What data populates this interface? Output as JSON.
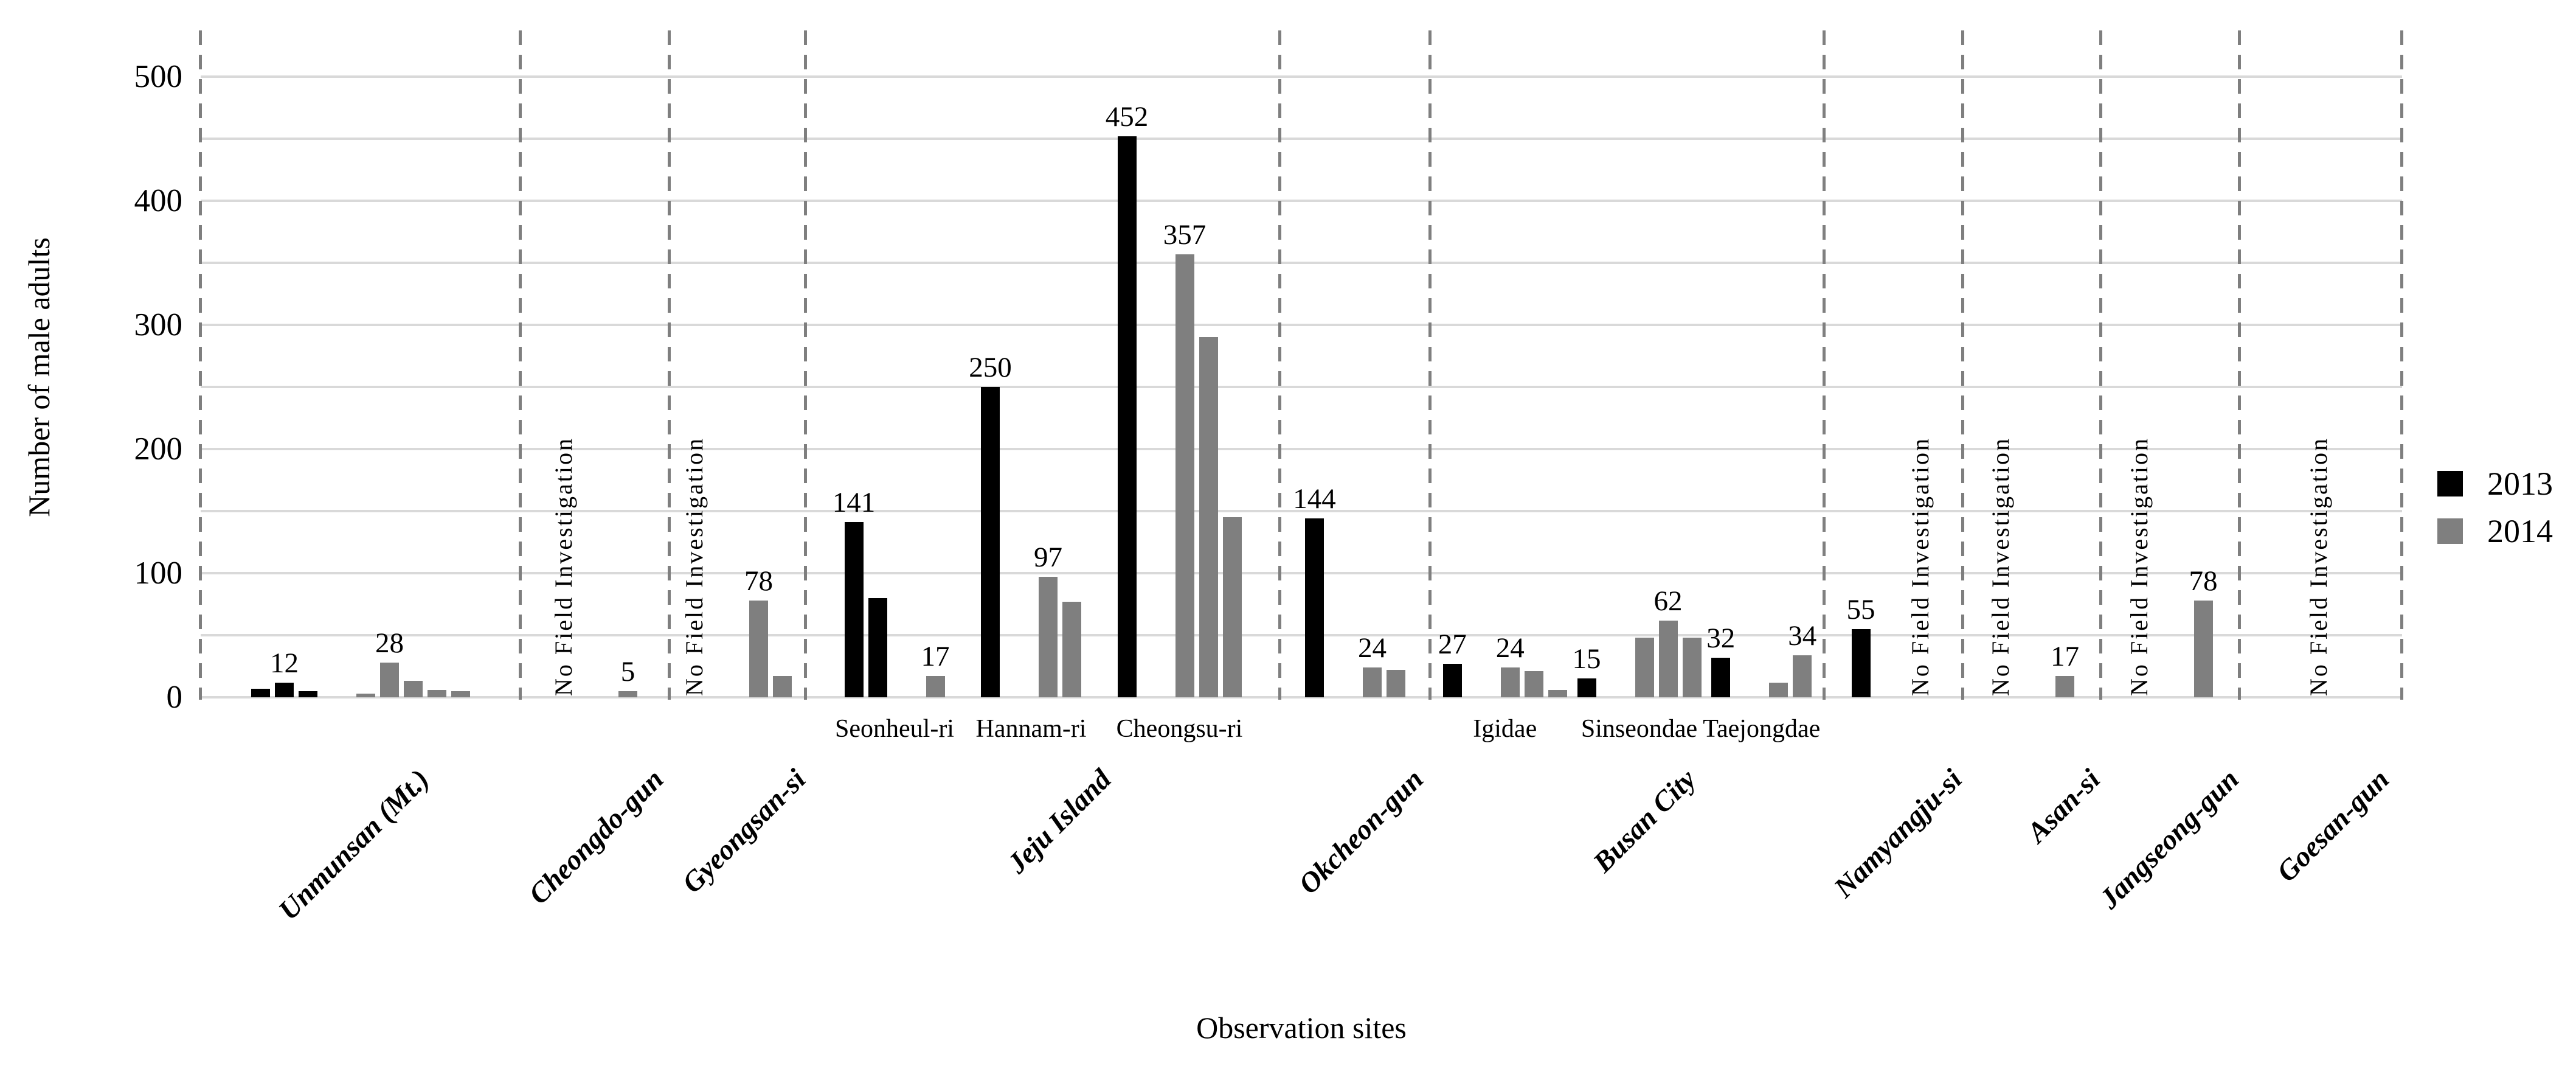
{
  "colors": {
    "background": "#ffffff",
    "grid": "#d9d9d9",
    "divider": "#7f7f7f",
    "text": "#000000"
  },
  "chart_data": {
    "type": "bar",
    "title": "",
    "xlabel": "Observation sites",
    "ylabel": "Number of male adults",
    "ylim": [
      0,
      500
    ],
    "ytick_labels": [
      "0",
      "100",
      "200",
      "300",
      "400",
      "500"
    ],
    "ytick_values": [
      0,
      100,
      200,
      300,
      400,
      500
    ],
    "grid_step": 50,
    "grid_on": true,
    "legend_position": "right",
    "no_field_text": "No Field Investigation",
    "legend": [
      {
        "year": "2013",
        "label": "2013",
        "color": "#000000"
      },
      {
        "year": "2014",
        "label": "2014",
        "color": "#7f7f7f"
      }
    ],
    "groups": [
      {
        "label": "Unmunsan (Mt.)",
        "clusters": [
          {
            "sublabel": null,
            "blocks": [
              {
                "year": "2013",
                "bars": [
                  {
                    "v": 7
                  },
                  {
                    "v": 12,
                    "label": "12"
                  },
                  {
                    "v": 5
                  }
                ]
              },
              {
                "year": "2014",
                "bars": [
                  {
                    "v": 3
                  },
                  {
                    "v": 28,
                    "label": "28"
                  },
                  {
                    "v": 13
                  },
                  {
                    "v": 6
                  },
                  {
                    "v": 5
                  }
                ]
              }
            ]
          }
        ]
      },
      {
        "label": "Cheongdo-gun",
        "clusters": [
          {
            "sublabel": null,
            "blocks": [
              {
                "year": "2013",
                "no_field": true
              },
              {
                "year": "2014",
                "bars": [
                  {
                    "v": 5,
                    "label": "5"
                  }
                ]
              }
            ]
          }
        ]
      },
      {
        "label": "Gyeongsan-si",
        "clusters": [
          {
            "sublabel": null,
            "blocks": [
              {
                "year": "2013",
                "no_field": true
              },
              {
                "year": "2014",
                "bars": [
                  {
                    "v": 78,
                    "label": "78"
                  },
                  {
                    "v": 17
                  }
                ]
              }
            ]
          }
        ]
      },
      {
        "label": "Jeju Island",
        "clusters": [
          {
            "sublabel": "Seonheul-ri",
            "blocks": [
              {
                "year": "2013",
                "bars": [
                  {
                    "v": 141,
                    "label": "141"
                  },
                  {
                    "v": 80
                  }
                ]
              },
              {
                "year": "2014",
                "bars": [
                  {
                    "v": 17,
                    "label": "17"
                  }
                ]
              }
            ]
          },
          {
            "sublabel": "Hannam-ri",
            "blocks": [
              {
                "year": "2013",
                "bars": [
                  {
                    "v": 250,
                    "label": "250"
                  }
                ]
              },
              {
                "year": "2014",
                "bars": [
                  {
                    "v": 97,
                    "label": "97"
                  },
                  {
                    "v": 77
                  }
                ]
              }
            ]
          },
          {
            "sublabel": "Cheongsu-ri",
            "blocks": [
              {
                "year": "2013",
                "bars": [
                  {
                    "v": 452,
                    "label": "452"
                  }
                ]
              },
              {
                "year": "2014",
                "bars": [
                  {
                    "v": 357,
                    "label": "357"
                  },
                  {
                    "v": 290
                  },
                  {
                    "v": 145
                  }
                ]
              }
            ]
          }
        ]
      },
      {
        "label": "Okcheon-gun",
        "clusters": [
          {
            "sublabel": null,
            "blocks": [
              {
                "year": "2013",
                "bars": [
                  {
                    "v": 144,
                    "label": "144"
                  }
                ]
              },
              {
                "year": "2014",
                "bars": [
                  {
                    "v": 24,
                    "label": "24"
                  },
                  {
                    "v": 22
                  }
                ]
              }
            ]
          }
        ]
      },
      {
        "label": "Busan City",
        "clusters": [
          {
            "sublabel": "Igidae",
            "blocks": [
              {
                "year": "2013",
                "bars": [
                  {
                    "v": 27,
                    "label": "27"
                  }
                ]
              },
              {
                "year": "2014",
                "bars": [
                  {
                    "v": 24,
                    "label": "24"
                  },
                  {
                    "v": 21
                  },
                  {
                    "v": 6
                  }
                ]
              }
            ]
          },
          {
            "sublabel": "Sinseondae",
            "blocks": [
              {
                "year": "2013",
                "bars": [
                  {
                    "v": 15,
                    "label": "15"
                  }
                ]
              },
              {
                "year": "2014",
                "bars": [
                  {
                    "v": 48
                  },
                  {
                    "v": 62,
                    "label": "62"
                  },
                  {
                    "v": 48
                  }
                ]
              }
            ]
          },
          {
            "sublabel": "Taejongdae",
            "blocks": [
              {
                "year": "2013",
                "bars": [
                  {
                    "v": 32,
                    "label": "32"
                  }
                ]
              },
              {
                "year": "2014",
                "bars": [
                  {
                    "v": 12
                  },
                  {
                    "v": 34,
                    "label": "34"
                  }
                ]
              }
            ]
          }
        ]
      },
      {
        "label": "Namyangju-si",
        "clusters": [
          {
            "sublabel": null,
            "blocks": [
              {
                "year": "2013",
                "bars": [
                  {
                    "v": 55,
                    "label": "55"
                  }
                ]
              },
              {
                "year": "2014",
                "no_field": true
              }
            ]
          }
        ]
      },
      {
        "label": "Asan-si",
        "clusters": [
          {
            "sublabel": null,
            "blocks": [
              {
                "year": "2013",
                "no_field": true
              },
              {
                "year": "2014",
                "bars": [
                  {
                    "v": 17,
                    "label": "17"
                  }
                ]
              }
            ]
          }
        ]
      },
      {
        "label": "Jangseong-gun",
        "clusters": [
          {
            "sublabel": null,
            "blocks": [
              {
                "year": "2013",
                "no_field": true
              },
              {
                "year": "2014",
                "bars": [
                  {
                    "v": 78,
                    "label": "78"
                  }
                ]
              }
            ]
          }
        ]
      },
      {
        "label": "Goesan-gun",
        "clusters": [
          {
            "sublabel": null,
            "blocks": [
              {
                "no_field": true
              }
            ]
          }
        ]
      }
    ]
  }
}
